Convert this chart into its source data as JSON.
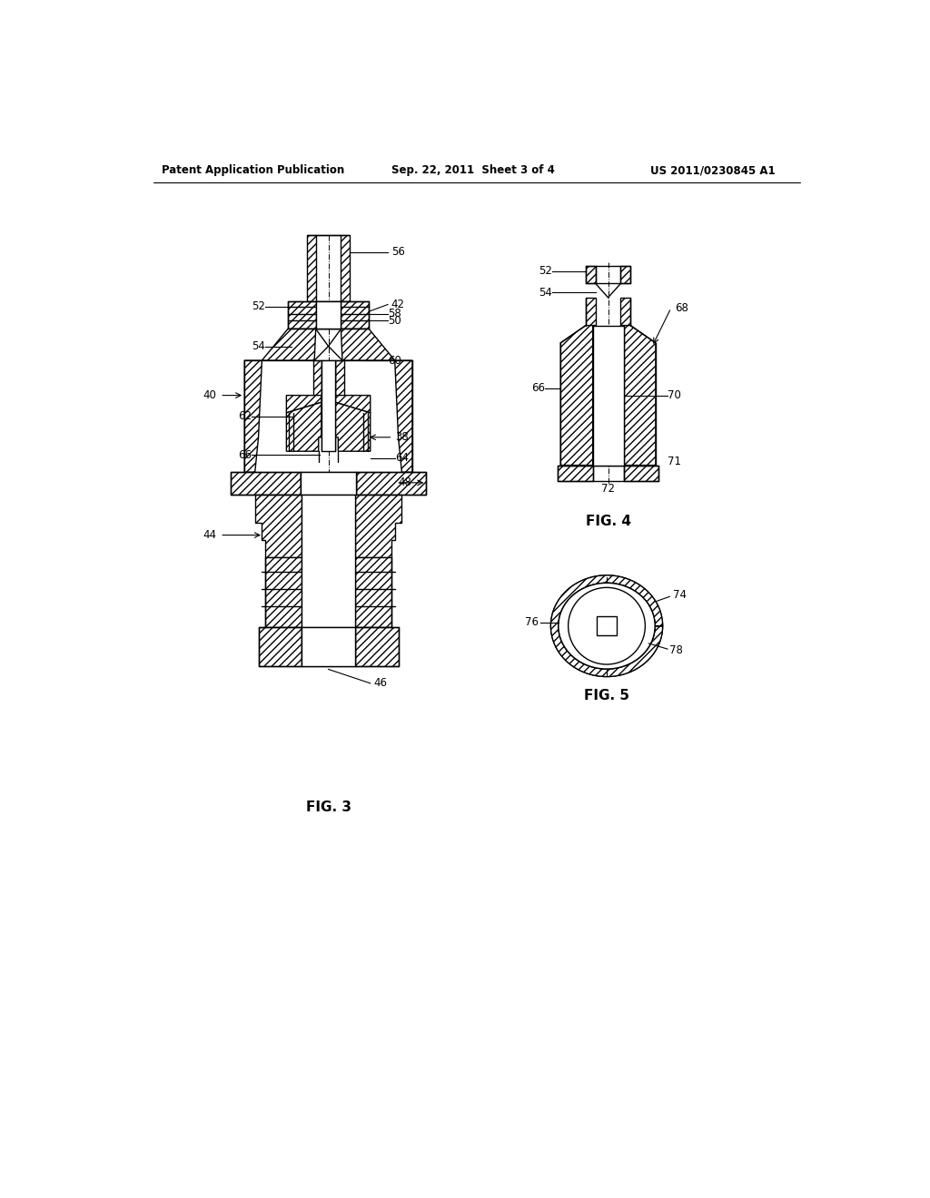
{
  "background_color": "#ffffff",
  "header_left": "Patent Application Publication",
  "header_mid": "Sep. 22, 2011  Sheet 3 of 4",
  "header_right": "US 2011/0230845 A1",
  "fig3_label": "FIG. 3",
  "fig4_label": "FIG. 4",
  "fig5_label": "FIG. 5",
  "line_color": "#000000"
}
